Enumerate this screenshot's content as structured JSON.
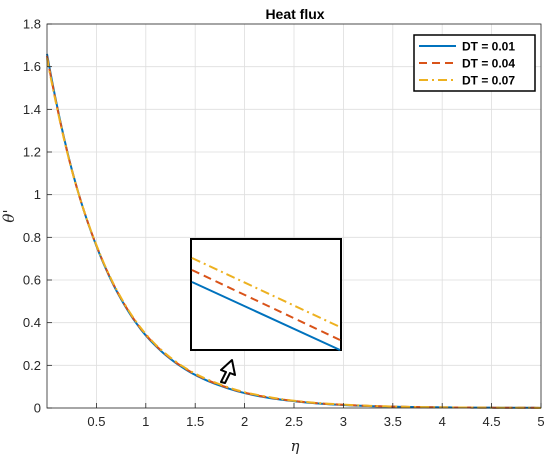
{
  "chart_data": {
    "type": "line",
    "title": "Heat flux",
    "xlabel": "η",
    "ylabel": "θ'",
    "xlim": [
      0,
      5
    ],
    "ylim": [
      0,
      1.8
    ],
    "xticks": [
      0.5,
      1,
      1.5,
      2,
      2.5,
      3,
      3.5,
      4,
      4.5,
      5
    ],
    "xtick_labels": [
      "0.5",
      "1",
      "1.5",
      "2",
      "2.5",
      "3",
      "3.5",
      "4",
      "4.5",
      "5"
    ],
    "yticks": [
      0,
      0.2,
      0.4,
      0.6,
      0.8,
      1,
      1.2,
      1.4,
      1.6,
      1.8
    ],
    "ytick_labels": [
      "0",
      "0.2",
      "0.4",
      "0.6",
      "0.8",
      "1",
      "1.2",
      "1.4",
      "1.6",
      "1.8"
    ],
    "grid": true,
    "legend_position": "top-right",
    "series": [
      {
        "name": "DT = 0.01",
        "color": "#0072BD",
        "style": "solid",
        "x": [
          0,
          0.1,
          0.25,
          0.5,
          0.75,
          1,
          1.25,
          1.5,
          1.75,
          2,
          2.25,
          2.5,
          2.75,
          3,
          3.5,
          4,
          4.5,
          5
        ],
        "y": [
          1.66,
          1.42,
          1.12,
          0.76,
          0.51,
          0.34,
          0.23,
          0.155,
          0.105,
          0.07,
          0.047,
          0.032,
          0.021,
          0.014,
          0.006,
          0.003,
          0.0015,
          0.0008
        ]
      },
      {
        "name": "DT = 0.04",
        "color": "#D95319",
        "style": "dashed",
        "x": [
          0,
          0.1,
          0.25,
          0.5,
          0.75,
          1,
          1.25,
          1.5,
          1.75,
          2,
          2.25,
          2.5,
          2.75,
          3,
          3.5,
          4,
          4.5,
          5
        ],
        "y": [
          1.65,
          1.415,
          1.118,
          0.762,
          0.513,
          0.343,
          0.233,
          0.158,
          0.108,
          0.072,
          0.049,
          0.033,
          0.022,
          0.015,
          0.0065,
          0.003,
          0.0015,
          0.0008
        ]
      },
      {
        "name": "DT = 0.07",
        "color": "#EDB120",
        "style": "dashdot",
        "x": [
          0,
          0.1,
          0.25,
          0.5,
          0.75,
          1,
          1.25,
          1.5,
          1.75,
          2,
          2.25,
          2.5,
          2.75,
          3,
          3.5,
          4,
          4.5,
          5
        ],
        "y": [
          1.64,
          1.41,
          1.116,
          0.764,
          0.516,
          0.346,
          0.236,
          0.161,
          0.111,
          0.074,
          0.051,
          0.034,
          0.023,
          0.016,
          0.007,
          0.0032,
          0.0016,
          0.0008
        ]
      }
    ],
    "inset": {
      "description": "zoomed detail of the three curves",
      "arrow": "up"
    }
  }
}
